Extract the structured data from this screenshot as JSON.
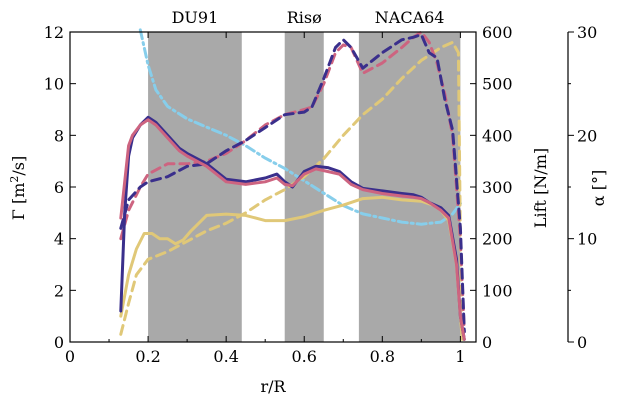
{
  "chart_data": {
    "type": "line",
    "xlabel": "r/R",
    "ylabel": "Γ [m²/s]",
    "ylabel_parts": {
      "main": "Γ  [m",
      "sup": "2",
      "tail": "/s]"
    },
    "y2label": "Lift [N/m]",
    "y3label": "α  [°]",
    "xlim": [
      0,
      1.04
    ],
    "ylim": [
      0,
      12
    ],
    "y2lim": [
      0,
      600
    ],
    "y3lim": [
      0,
      30
    ],
    "xticks": [
      0,
      0.2,
      0.4,
      0.6,
      0.8,
      1
    ],
    "xtick_labels": [
      "0",
      "0.2",
      "0.4",
      "0.6",
      "0.8",
      "1"
    ],
    "yticks": [
      0,
      2,
      4,
      6,
      8,
      10,
      12
    ],
    "ytick_labels": [
      "0",
      "2",
      "4",
      "6",
      "8",
      "10",
      "12"
    ],
    "y2ticks": [
      0,
      100,
      200,
      300,
      400,
      500,
      600
    ],
    "y2tick_labels": [
      "0",
      "100",
      "200",
      "300",
      "400",
      "500",
      "600"
    ],
    "y3ticks": [
      0,
      10,
      20,
      30
    ],
    "y3tick_labels": [
      "0",
      "10",
      "20",
      "30"
    ],
    "grid": false,
    "regions": [
      {
        "label": "DU91",
        "x_start": 0.2,
        "x_end": 0.44,
        "color": "#a9a9a9"
      },
      {
        "label": "Risø",
        "x_start": 0.55,
        "x_end": 0.65,
        "color": "#a9a9a9"
      },
      {
        "label": "NACA64",
        "x_start": 0.74,
        "x_end": 1.0,
        "color": "#a9a9a9"
      }
    ],
    "series": [
      {
        "axis": "y3",
        "color": "#87ceeb",
        "style": "dashdot",
        "width": 3,
        "points": [
          [
            0.18,
            30.2
          ],
          [
            0.2,
            26.8
          ],
          [
            0.22,
            24.4
          ],
          [
            0.25,
            22.8
          ],
          [
            0.3,
            21.6
          ],
          [
            0.35,
            20.8
          ],
          [
            0.4,
            20.0
          ],
          [
            0.45,
            19.0
          ],
          [
            0.5,
            17.8
          ],
          [
            0.55,
            16.8
          ],
          [
            0.6,
            15.6
          ],
          [
            0.65,
            14.4
          ],
          [
            0.7,
            13.2
          ],
          [
            0.75,
            12.4
          ],
          [
            0.8,
            12.0
          ],
          [
            0.85,
            11.6
          ],
          [
            0.9,
            11.4
          ],
          [
            0.95,
            11.6
          ],
          [
            0.98,
            12.4
          ],
          [
            1.0,
            13.4
          ]
        ]
      },
      {
        "axis": "y2",
        "color": "#e0c878",
        "style": "dash",
        "width": 3,
        "points": [
          [
            0.13,
            15
          ],
          [
            0.15,
            75
          ],
          [
            0.17,
            130
          ],
          [
            0.2,
            160
          ],
          [
            0.25,
            175
          ],
          [
            0.3,
            195
          ],
          [
            0.35,
            215
          ],
          [
            0.4,
            230
          ],
          [
            0.45,
            250
          ],
          [
            0.5,
            275
          ],
          [
            0.55,
            295
          ],
          [
            0.6,
            320
          ],
          [
            0.65,
            355
          ],
          [
            0.7,
            400
          ],
          [
            0.75,
            440
          ],
          [
            0.8,
            470
          ],
          [
            0.85,
            510
          ],
          [
            0.9,
            545
          ],
          [
            0.95,
            570
          ],
          [
            0.98,
            580
          ],
          [
            0.995,
            560
          ],
          [
            1.0,
            200
          ],
          [
            1.005,
            20
          ]
        ]
      },
      {
        "axis": "y2",
        "color": "#cd6480",
        "style": "dash",
        "width": 3,
        "points": [
          [
            0.13,
            200
          ],
          [
            0.15,
            255
          ],
          [
            0.18,
            300
          ],
          [
            0.2,
            325
          ],
          [
            0.25,
            345
          ],
          [
            0.3,
            345
          ],
          [
            0.35,
            350
          ],
          [
            0.4,
            365
          ],
          [
            0.45,
            390
          ],
          [
            0.5,
            420
          ],
          [
            0.55,
            440
          ],
          [
            0.6,
            450
          ],
          [
            0.62,
            455
          ],
          [
            0.65,
            500
          ],
          [
            0.68,
            560
          ],
          [
            0.7,
            575
          ],
          [
            0.72,
            570
          ],
          [
            0.75,
            520
          ],
          [
            0.8,
            540
          ],
          [
            0.85,
            570
          ],
          [
            0.88,
            590
          ],
          [
            0.9,
            600
          ],
          [
            0.92,
            580
          ],
          [
            0.94,
            540
          ],
          [
            0.96,
            480
          ],
          [
            0.98,
            400
          ],
          [
            1.0,
            200
          ],
          [
            1.01,
            20
          ]
        ]
      },
      {
        "axis": "y2",
        "color": "#3a2f8c",
        "style": "dash",
        "width": 3,
        "points": [
          [
            0.13,
            220
          ],
          [
            0.15,
            275
          ],
          [
            0.18,
            300
          ],
          [
            0.2,
            310
          ],
          [
            0.25,
            320
          ],
          [
            0.3,
            340
          ],
          [
            0.35,
            345
          ],
          [
            0.4,
            370
          ],
          [
            0.45,
            390
          ],
          [
            0.5,
            415
          ],
          [
            0.55,
            440
          ],
          [
            0.6,
            445
          ],
          [
            0.62,
            455
          ],
          [
            0.65,
            510
          ],
          [
            0.68,
            570
          ],
          [
            0.7,
            585
          ],
          [
            0.72,
            570
          ],
          [
            0.75,
            530
          ],
          [
            0.8,
            560
          ],
          [
            0.85,
            585
          ],
          [
            0.88,
            590
          ],
          [
            0.9,
            595
          ],
          [
            0.92,
            560
          ],
          [
            0.94,
            550
          ],
          [
            0.96,
            470
          ],
          [
            0.98,
            410
          ],
          [
            1.0,
            220
          ],
          [
            1.01,
            20
          ]
        ]
      },
      {
        "axis": "y",
        "color": "#e0c878",
        "style": "solid",
        "width": 3,
        "points": [
          [
            0.13,
            1.0
          ],
          [
            0.15,
            2.6
          ],
          [
            0.17,
            3.6
          ],
          [
            0.19,
            4.2
          ],
          [
            0.21,
            4.2
          ],
          [
            0.23,
            4.0
          ],
          [
            0.25,
            4.0
          ],
          [
            0.27,
            3.8
          ],
          [
            0.29,
            3.95
          ],
          [
            0.31,
            4.3
          ],
          [
            0.33,
            4.6
          ],
          [
            0.35,
            4.9
          ],
          [
            0.4,
            4.95
          ],
          [
            0.45,
            4.9
          ],
          [
            0.5,
            4.7
          ],
          [
            0.55,
            4.7
          ],
          [
            0.6,
            4.85
          ],
          [
            0.65,
            5.1
          ],
          [
            0.7,
            5.3
          ],
          [
            0.75,
            5.55
          ],
          [
            0.8,
            5.6
          ],
          [
            0.85,
            5.5
          ],
          [
            0.9,
            5.45
          ],
          [
            0.93,
            5.3
          ],
          [
            0.95,
            5.1
          ],
          [
            0.97,
            4.7
          ],
          [
            0.99,
            3.0
          ],
          [
            1.0,
            1.0
          ],
          [
            1.005,
            0.1
          ]
        ]
      },
      {
        "axis": "y",
        "color": "#3a2f8c",
        "style": "solid",
        "width": 3,
        "points": [
          [
            0.13,
            1.2
          ],
          [
            0.14,
            5.0
          ],
          [
            0.15,
            7.2
          ],
          [
            0.16,
            7.9
          ],
          [
            0.18,
            8.4
          ],
          [
            0.2,
            8.7
          ],
          [
            0.22,
            8.5
          ],
          [
            0.25,
            8.0
          ],
          [
            0.28,
            7.5
          ],
          [
            0.3,
            7.3
          ],
          [
            0.35,
            6.9
          ],
          [
            0.4,
            6.3
          ],
          [
            0.45,
            6.2
          ],
          [
            0.5,
            6.35
          ],
          [
            0.53,
            6.5
          ],
          [
            0.55,
            6.2
          ],
          [
            0.57,
            6.0
          ],
          [
            0.6,
            6.6
          ],
          [
            0.63,
            6.8
          ],
          [
            0.66,
            6.75
          ],
          [
            0.69,
            6.6
          ],
          [
            0.72,
            6.2
          ],
          [
            0.75,
            5.95
          ],
          [
            0.8,
            5.85
          ],
          [
            0.85,
            5.75
          ],
          [
            0.88,
            5.7
          ],
          [
            0.9,
            5.6
          ],
          [
            0.92,
            5.4
          ],
          [
            0.95,
            5.2
          ],
          [
            0.97,
            4.9
          ],
          [
            0.99,
            3.2
          ],
          [
            1.0,
            1.0
          ],
          [
            1.01,
            0.1
          ]
        ]
      },
      {
        "axis": "y",
        "color": "#cd6480",
        "style": "solid",
        "width": 3,
        "points": [
          [
            0.13,
            4.8
          ],
          [
            0.14,
            6.2
          ],
          [
            0.15,
            7.6
          ],
          [
            0.16,
            8.0
          ],
          [
            0.18,
            8.4
          ],
          [
            0.2,
            8.6
          ],
          [
            0.22,
            8.4
          ],
          [
            0.25,
            7.9
          ],
          [
            0.28,
            7.4
          ],
          [
            0.3,
            7.2
          ],
          [
            0.35,
            6.8
          ],
          [
            0.4,
            6.2
          ],
          [
            0.45,
            6.1
          ],
          [
            0.5,
            6.2
          ],
          [
            0.53,
            6.35
          ],
          [
            0.55,
            6.1
          ],
          [
            0.57,
            6.05
          ],
          [
            0.6,
            6.5
          ],
          [
            0.63,
            6.7
          ],
          [
            0.66,
            6.6
          ],
          [
            0.69,
            6.5
          ],
          [
            0.72,
            6.1
          ],
          [
            0.75,
            5.9
          ],
          [
            0.8,
            5.75
          ],
          [
            0.85,
            5.65
          ],
          [
            0.88,
            5.6
          ],
          [
            0.9,
            5.55
          ],
          [
            0.92,
            5.4
          ],
          [
            0.95,
            5.1
          ],
          [
            0.97,
            4.8
          ],
          [
            0.99,
            3.0
          ],
          [
            1.0,
            1.0
          ],
          [
            1.01,
            0.1
          ]
        ]
      }
    ]
  }
}
